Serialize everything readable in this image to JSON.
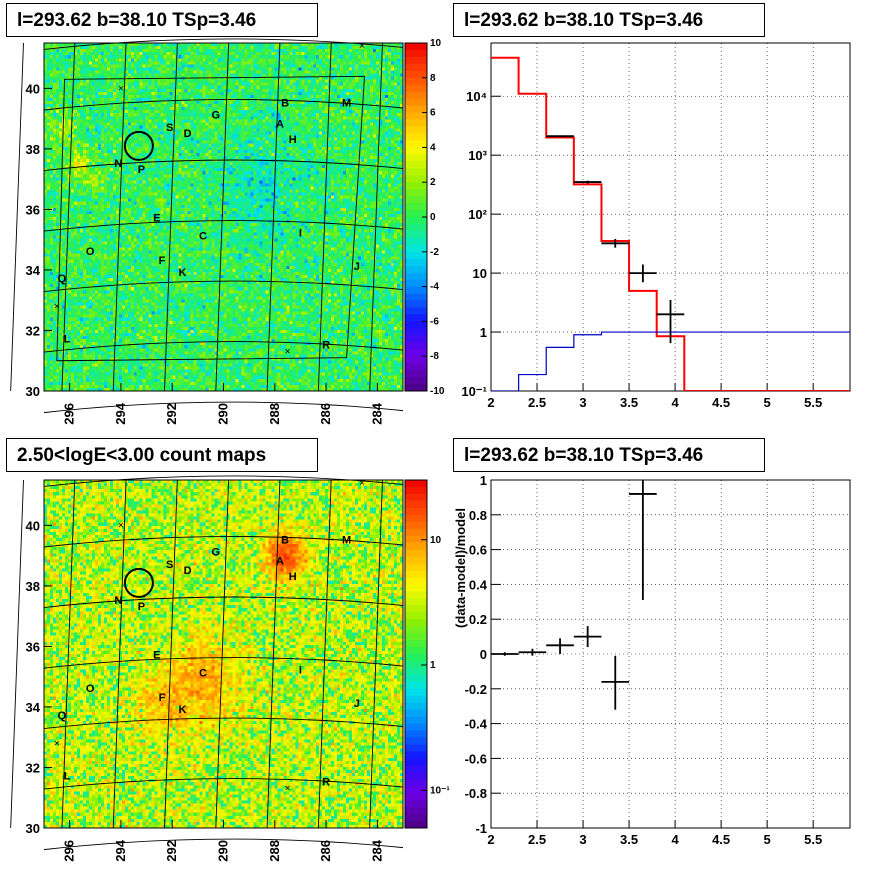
{
  "panels": {
    "top_left_title": "l=293.62 b=38.10 TSp=3.46",
    "top_right_title": "l=293.62 b=38.10 TSp=3.46",
    "bottom_left_title": "2.50<logE<3.00 count maps",
    "bottom_right_title": "l=293.62 b=38.10 TSp=3.46"
  },
  "chart_data": [
    {
      "type": "heatmap",
      "description": "residual significance map",
      "xlim": [
        283,
        297
      ],
      "ylim": [
        30,
        41.5
      ],
      "x_ticks": [
        296,
        294,
        292,
        290,
        288,
        286,
        284
      ],
      "y_ticks": [
        30,
        32,
        34,
        36,
        38,
        40
      ],
      "colorbar_ticks": [
        10,
        8,
        6,
        4,
        2,
        0,
        -2,
        -4,
        -6,
        -8,
        -10
      ],
      "colorbar_range": [
        -10,
        10
      ],
      "sources": [
        {
          "label": "B",
          "l": 287.6,
          "b": 39.4
        },
        {
          "label": "M",
          "l": 285.2,
          "b": 39.4
        },
        {
          "label": "G",
          "l": 290.3,
          "b": 39.0
        },
        {
          "label": "A",
          "l": 287.8,
          "b": 38.7
        },
        {
          "label": "S",
          "l": 292.1,
          "b": 38.6
        },
        {
          "label": "D",
          "l": 291.4,
          "b": 38.4
        },
        {
          "label": "H",
          "l": 287.3,
          "b": 38.2
        },
        {
          "label": "N",
          "l": 294.1,
          "b": 37.4
        },
        {
          "label": "P",
          "l": 293.2,
          "b": 37.2
        },
        {
          "label": "E",
          "l": 292.6,
          "b": 35.6
        },
        {
          "label": "C",
          "l": 290.8,
          "b": 35.0
        },
        {
          "label": "I",
          "l": 287.0,
          "b": 35.1
        },
        {
          "label": "O",
          "l": 295.2,
          "b": 34.5
        },
        {
          "label": "F",
          "l": 292.4,
          "b": 34.2
        },
        {
          "label": "K",
          "l": 291.6,
          "b": 33.8
        },
        {
          "label": "J",
          "l": 284.8,
          "b": 34.0
        },
        {
          "label": "Q",
          "l": 296.3,
          "b": 33.6
        },
        {
          "label": "L",
          "l": 296.1,
          "b": 31.6
        },
        {
          "label": "R",
          "l": 286.0,
          "b": 31.4
        }
      ],
      "crosses": [
        {
          "l": 294.0,
          "b": 40.0
        },
        {
          "l": 284.6,
          "b": 41.4
        },
        {
          "l": 296.5,
          "b": 32.8
        },
        {
          "l": 287.5,
          "b": 31.3
        }
      ],
      "circle": {
        "l": 293.3,
        "b": 38.1
      }
    },
    {
      "type": "line",
      "description": "counts spectrum (log y)",
      "xlim": [
        2,
        5.9
      ],
      "ylim_log": [
        0.1,
        80000
      ],
      "x_ticks": [
        "2",
        "2.5",
        "3",
        "3.5",
        "4",
        "4.5",
        "5",
        "5.5"
      ],
      "y_ticks": [
        {
          "v": 0.1,
          "label": "10⁻¹"
        },
        {
          "v": 1,
          "label": "1"
        },
        {
          "v": 10,
          "label": "10"
        },
        {
          "v": 100,
          "label": "10²"
        },
        {
          "v": 1000,
          "label": "10³"
        },
        {
          "v": 10000,
          "label": "10⁴"
        }
      ],
      "bin_edges": [
        2.0,
        2.3,
        2.6,
        2.9,
        3.2,
        3.5,
        3.8,
        4.1,
        4.4,
        5.9
      ],
      "series": [
        {
          "name": "",
          "color": "#ff0000",
          "values": [
            45000,
            11000,
            2000,
            320,
            35,
            5,
            0.85,
            0.1,
            0.1
          ]
        },
        {
          "name": "",
          "color": "#0000cc",
          "values": [
            0.09,
            0.19,
            0.55,
            0.9,
            1.0,
            1.0,
            1.0,
            1.0,
            1.0
          ]
        }
      ],
      "data_points": [
        {
          "x": 2.75,
          "xerr": 0.15,
          "y": 2100,
          "ylo": 2050,
          "yhi": 2150
        },
        {
          "x": 3.05,
          "xerr": 0.15,
          "y": 350,
          "ylo": 330,
          "yhi": 370
        },
        {
          "x": 3.35,
          "xerr": 0.15,
          "y": 32,
          "ylo": 27,
          "yhi": 38
        },
        {
          "x": 3.65,
          "xerr": 0.15,
          "y": 10,
          "ylo": 7,
          "yhi": 14
        },
        {
          "x": 3.95,
          "xerr": 0.15,
          "y": 2,
          "ylo": 0.65,
          "yhi": 3.5
        }
      ]
    },
    {
      "type": "heatmap",
      "description": "count map",
      "xlim": [
        283,
        297
      ],
      "ylim": [
        30,
        41.5
      ],
      "x_ticks": [
        296,
        294,
        292,
        290,
        288,
        286,
        284
      ],
      "y_ticks": [
        30,
        32,
        34,
        36,
        38,
        40
      ],
      "colorbar_ticks": [
        {
          "v": 10,
          "label": "10"
        },
        {
          "v": 1,
          "label": "1"
        },
        {
          "v": 0.1,
          "label": "10⁻¹"
        }
      ],
      "colorbar_log_range": [
        0.05,
        30
      ]
    },
    {
      "type": "scatter",
      "description": "residuals",
      "ylabel": "(data-model)/model",
      "xlim": [
        2,
        5.9
      ],
      "ylim": [
        -1,
        1
      ],
      "x_ticks": [
        "2",
        "2.5",
        "3",
        "3.5",
        "4",
        "4.5",
        "5",
        "5.5"
      ],
      "y_ticks": [
        "1",
        "0.8",
        "0.6",
        "0.4",
        "0.2",
        "0",
        "-0.2",
        "-0.4",
        "-0.6",
        "-0.8",
        "-1"
      ],
      "points": [
        {
          "x": 2.15,
          "xerr": 0.15,
          "y": 0.0,
          "ylo": -0.01,
          "yhi": 0.01
        },
        {
          "x": 2.45,
          "xerr": 0.15,
          "y": 0.01,
          "ylo": -0.01,
          "yhi": 0.03
        },
        {
          "x": 2.75,
          "xerr": 0.15,
          "y": 0.05,
          "ylo": 0.0,
          "yhi": 0.09
        },
        {
          "x": 3.05,
          "xerr": 0.15,
          "y": 0.1,
          "ylo": 0.04,
          "yhi": 0.16
        },
        {
          "x": 3.35,
          "xerr": 0.15,
          "y": -0.16,
          "ylo": -0.32,
          "yhi": -0.01
        },
        {
          "x": 3.65,
          "xerr": 0.15,
          "y": 0.92,
          "ylo": 0.31,
          "yhi": 1.0
        }
      ]
    }
  ]
}
